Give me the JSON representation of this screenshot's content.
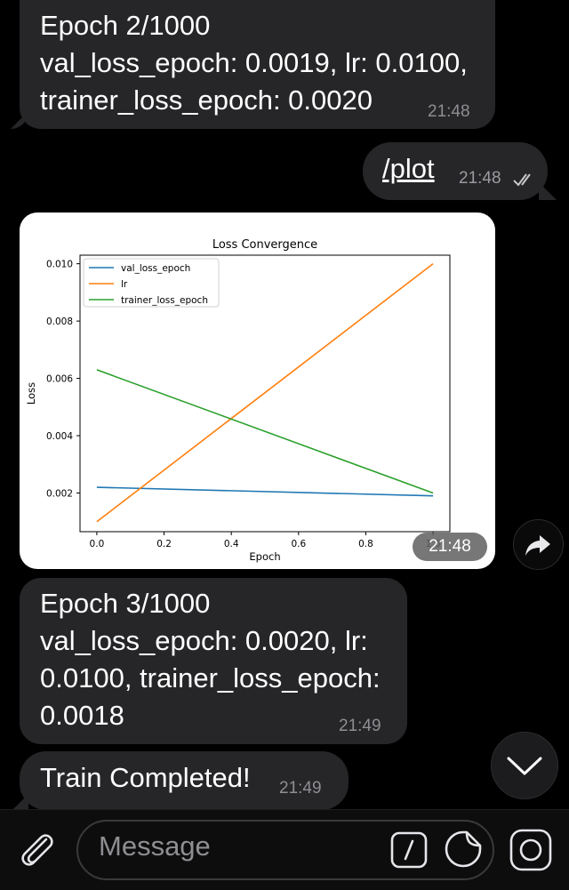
{
  "messages": [
    {
      "lines": [
        "Epoch 2/1000",
        "val_loss_epoch: 0.0019, lr: 0.0100,",
        "trainer_loss_epoch: 0.0020"
      ],
      "time": "21:48"
    },
    {
      "command": "/plot",
      "time": "21:48",
      "status": "read"
    },
    {
      "type": "photo",
      "time": "21:48"
    },
    {
      "lines": [
        "Epoch 3/1000",
        "val_loss_epoch: 0.0020, lr:",
        "0.0100, trainer_loss_epoch:",
        "0.0018"
      ],
      "time": "21:49"
    },
    {
      "lines": [
        "Train Completed!"
      ],
      "time": "21:49"
    }
  ],
  "composer": {
    "placeholder": "Message"
  },
  "icons": {
    "attach": "paperclip-icon",
    "command": "slash-command-icon",
    "sticker": "sticker-icon",
    "camera": "camera-icon",
    "forward": "share-forward-icon",
    "scroll": "chevron-down-icon"
  },
  "chart_data": {
    "type": "line",
    "title": "Loss Convergence",
    "xlabel": "Epoch",
    "ylabel": "Loss",
    "xlim": [
      -0.05,
      1.05
    ],
    "ylim": [
      0.00065,
      0.0103
    ],
    "xticks": [
      0.0,
      0.2,
      0.4,
      0.6,
      0.8,
      1.0
    ],
    "xtick_labels": [
      "0.0",
      "0.2",
      "0.4",
      "0.6",
      "0.8",
      "1.0"
    ],
    "yticks": [
      0.002,
      0.004,
      0.006,
      0.008,
      0.01
    ],
    "ytick_labels": [
      "0.002",
      "0.004",
      "0.006",
      "0.008",
      "0.010"
    ],
    "legend_position": "top-left",
    "grid": false,
    "series": [
      {
        "name": "val_loss_epoch",
        "color": "#1f77b4",
        "x": [
          0,
          1
        ],
        "y": [
          0.0022,
          0.0019
        ]
      },
      {
        "name": "lr",
        "color": "#ff7f0e",
        "x": [
          0,
          1
        ],
        "y": [
          0.001,
          0.01
        ]
      },
      {
        "name": "trainer_loss_epoch",
        "color": "#2ca02c",
        "x": [
          0,
          1
        ],
        "y": [
          0.0063,
          0.002
        ]
      }
    ]
  }
}
